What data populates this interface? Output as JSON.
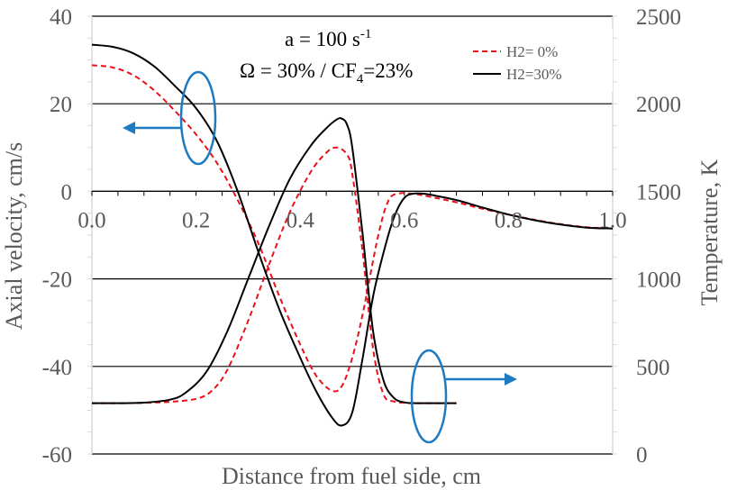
{
  "chart_data": {
    "type": "line",
    "xlabel": "Distance from fuel side, cm",
    "ylabel": "Axial velocity, cm/s",
    "y2label": "Temperature, K",
    "xlim": [
      0,
      1.0
    ],
    "ylim": [
      -60,
      40
    ],
    "y2lim": [
      0,
      2500
    ],
    "x_ticks": [
      "0.0",
      "0.2",
      "0.4",
      "0.6",
      "0.8",
      "1.0"
    ],
    "y_ticks": [
      "40",
      "20",
      "0",
      "-20",
      "-40",
      "-60"
    ],
    "y2_ticks": [
      "2500",
      "2000",
      "1500",
      "1000",
      "500",
      "0"
    ],
    "grid": true,
    "legend_position": "top-right",
    "annotation": {
      "strain_prefix": "a = 100 s",
      "strain_exp": "-1",
      "omega_text": "Ω = 30% / CF",
      "cf_sub": "4",
      "cf_tail": "=23%"
    },
    "series": [
      {
        "name": "H2= 0%",
        "color": "#e8111c",
        "dash": "dashed",
        "velocity": {
          "x": [
            0.0,
            0.04,
            0.08,
            0.12,
            0.16,
            0.2,
            0.24,
            0.28,
            0.32,
            0.36,
            0.4,
            0.43,
            0.46,
            0.48,
            0.5,
            0.52,
            0.55,
            0.57,
            0.59,
            0.61,
            0.63,
            0.66,
            0.7,
            0.75,
            0.8,
            0.85,
            0.9,
            0.95,
            1.0
          ],
          "y": [
            28.8,
            28.3,
            26.5,
            23.0,
            18.3,
            13.0,
            6.5,
            -2.0,
            -12.0,
            -24.0,
            -35.0,
            -42.0,
            -45.5,
            -44.5,
            -38.0,
            -28.0,
            -10.0,
            -2.0,
            -0.5,
            -0.5,
            -0.8,
            -1.5,
            -2.5,
            -4.0,
            -5.3,
            -6.5,
            -7.5,
            -8.2,
            -8.5
          ]
        },
        "temperature": {
          "x": [
            0.0,
            0.05,
            0.1,
            0.15,
            0.2,
            0.23,
            0.26,
            0.3,
            0.34,
            0.38,
            0.42,
            0.45,
            0.47,
            0.49,
            0.5,
            0.52,
            0.54,
            0.56,
            0.58,
            0.6,
            0.62,
            0.64,
            0.66,
            0.68,
            0.7
          ],
          "y": [
            290,
            290,
            292,
            298,
            315,
            360,
            480,
            760,
            1080,
            1380,
            1610,
            1720,
            1750,
            1710,
            1600,
            1150,
            600,
            340,
            300,
            292,
            290,
            290,
            290,
            290,
            290
          ]
        }
      },
      {
        "name": "H2=30%",
        "color": "#000000",
        "dash": "solid",
        "velocity": {
          "x": [
            0.0,
            0.04,
            0.08,
            0.12,
            0.16,
            0.2,
            0.24,
            0.28,
            0.32,
            0.36,
            0.4,
            0.43,
            0.46,
            0.48,
            0.5,
            0.52,
            0.54,
            0.56,
            0.58,
            0.6,
            0.62,
            0.64,
            0.66,
            0.7,
            0.75,
            0.8,
            0.85,
            0.9,
            0.95,
            1.0
          ],
          "y": [
            33.5,
            33.0,
            31.5,
            28.5,
            24.0,
            19.0,
            11.5,
            0.0,
            -14.0,
            -27.0,
            -38.0,
            -45.5,
            -51.5,
            -53.5,
            -50.5,
            -38.0,
            -24.0,
            -14.0,
            -6.0,
            -1.5,
            -0.5,
            -0.6,
            -1.0,
            -2.0,
            -3.7,
            -5.3,
            -6.6,
            -7.6,
            -8.3,
            -8.5
          ]
        },
        "temperature": {
          "x": [
            0.0,
            0.05,
            0.1,
            0.15,
            0.18,
            0.22,
            0.26,
            0.3,
            0.34,
            0.38,
            0.42,
            0.45,
            0.47,
            0.48,
            0.49,
            0.5,
            0.52,
            0.54,
            0.56,
            0.58,
            0.6,
            0.62,
            0.64,
            0.66,
            0.68,
            0.7
          ],
          "y": [
            290,
            290,
            293,
            310,
            350,
            470,
            700,
            1000,
            1300,
            1570,
            1760,
            1860,
            1910,
            1915,
            1880,
            1750,
            1250,
            700,
            420,
            320,
            295,
            290,
            290,
            290,
            290,
            290
          ]
        }
      }
    ]
  }
}
